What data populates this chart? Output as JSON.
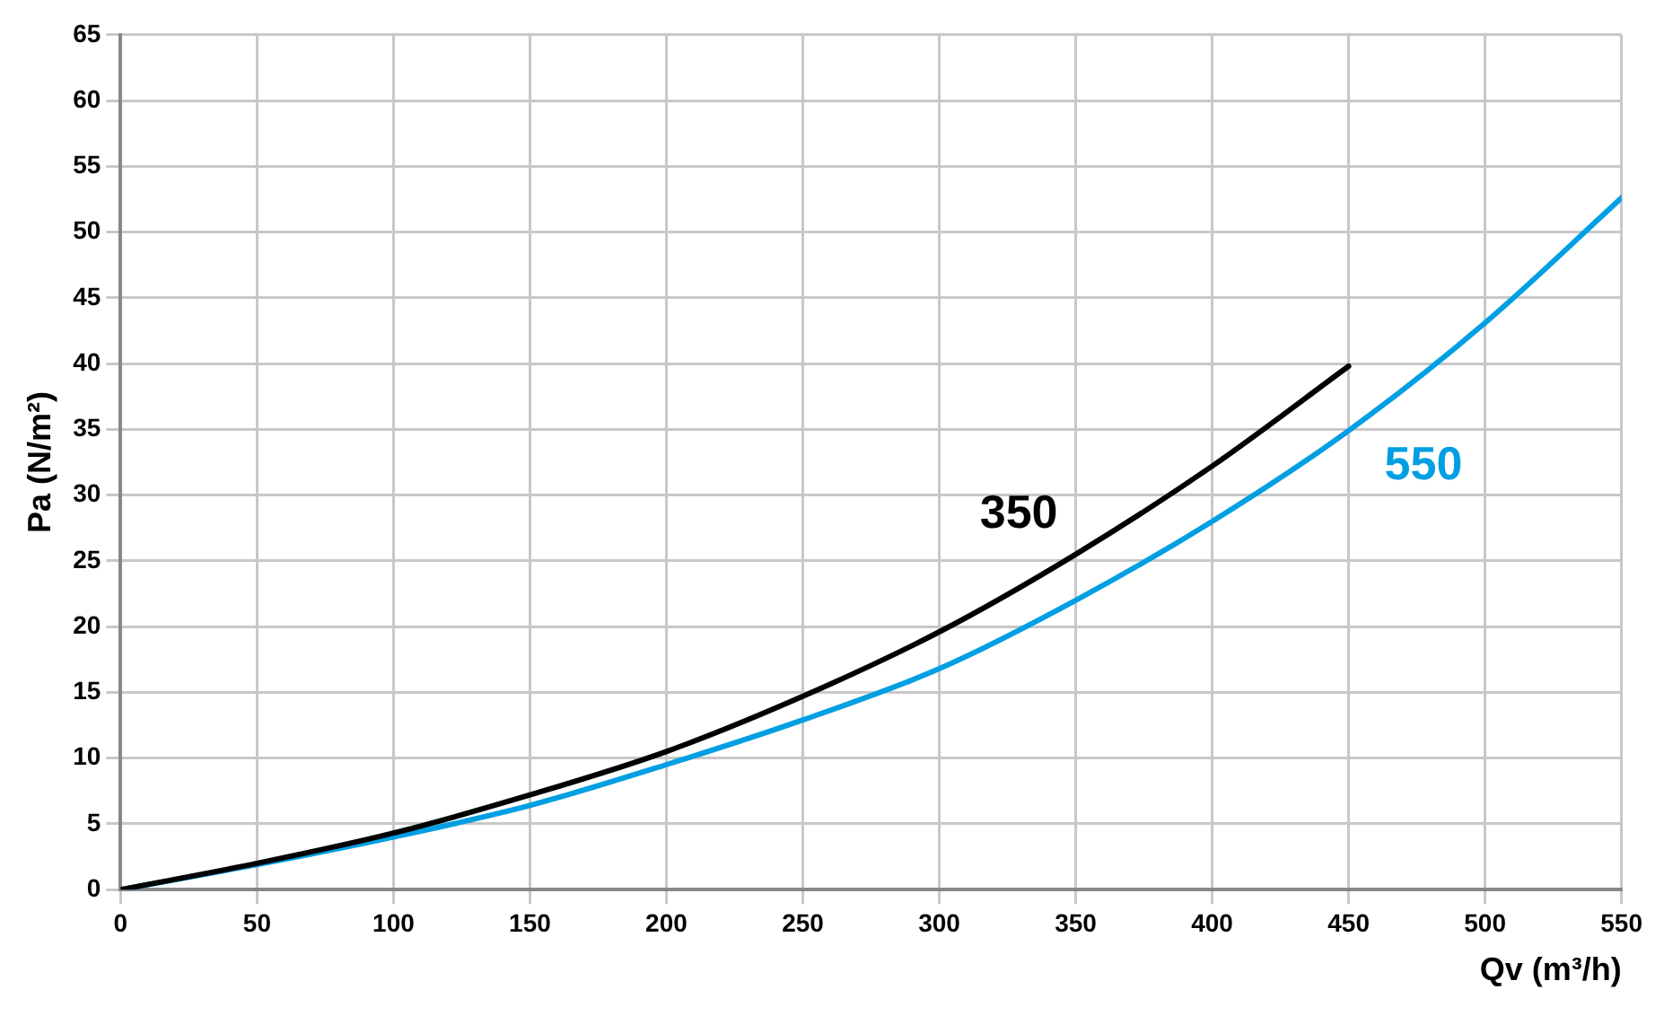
{
  "chart_data": {
    "type": "line",
    "xlabel": "Qv (m³/h)",
    "ylabel": "Pa (N/m²)",
    "series": [
      {
        "name": "350",
        "color": "#000000",
        "x": [
          0,
          50,
          100,
          150,
          200,
          250,
          300,
          350,
          400,
          450
        ],
        "values": [
          0,
          2.0,
          4.3,
          7.2,
          10.5,
          14.7,
          19.6,
          25.5,
          32.2,
          39.8
        ]
      },
      {
        "name": "550",
        "color": "#009fe3",
        "x": [
          0,
          50,
          100,
          150,
          200,
          250,
          300,
          350,
          400,
          450,
          500,
          550
        ],
        "values": [
          0,
          1.9,
          4.0,
          6.4,
          9.5,
          12.9,
          16.8,
          22.0,
          28.0,
          34.9,
          43.1,
          52.6
        ]
      }
    ],
    "xlim": [
      0,
      550
    ],
    "xticks": [
      0,
      50,
      100,
      150,
      200,
      250,
      300,
      350,
      400,
      450,
      500,
      550
    ],
    "ylim": [
      0,
      65
    ],
    "yticks": [
      0,
      5,
      10,
      15,
      20,
      25,
      30,
      35,
      40,
      45,
      50,
      55,
      60,
      65
    ],
    "grid": true,
    "legend": false,
    "marker": "none",
    "line_style": "solid"
  }
}
